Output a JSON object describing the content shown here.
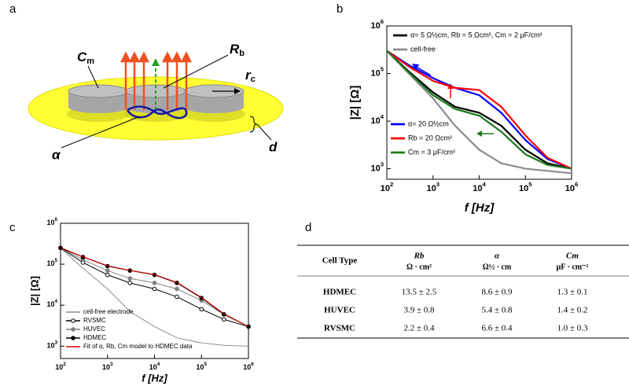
{
  "panel_labels": [
    "a",
    "b",
    "c",
    "d"
  ],
  "diagram": {
    "labels": [
      {
        "text": "C",
        "sub": "m"
      },
      {
        "text": "R",
        "sub": "b"
      },
      {
        "text": "r",
        "sub": "c"
      },
      {
        "text": "α"
      },
      {
        "text": "d"
      }
    ]
  },
  "chart_data": [
    {
      "type": "line",
      "log_x": true,
      "log_y": true,
      "xlabel": "f [Hz]",
      "ylabel": "|Z| [Ω]",
      "xlim": [
        100,
        1000000
      ],
      "ylim": [
        600,
        1000000
      ],
      "xticks": [
        {
          "value": 100,
          "label": "10^2"
        },
        {
          "value": 1000,
          "label": "10^3"
        },
        {
          "value": 10000,
          "label": "10^4"
        },
        {
          "value": 100000,
          "label": "10^5"
        },
        {
          "value": 1000000,
          "label": "10^6"
        }
      ],
      "yticks": [
        {
          "value": 1000,
          "label": "10^3"
        },
        {
          "value": 10000,
          "label": "10^4"
        },
        {
          "value": 100000,
          "label": "10^5"
        },
        {
          "value": 1000000,
          "label": "10^6"
        }
      ],
      "x": [
        100,
        300,
        1000,
        3000,
        10000,
        30000,
        100000,
        300000,
        1000000
      ],
      "series": [
        {
          "name": "α= 5 Ω½cm, Rb = 5 Ωcm², Cm = 2 μF/cm²",
          "color": "#000000",
          "values": [
            300000,
            110000,
            40000,
            20000,
            15000,
            8000,
            2500,
            1300,
            1000
          ]
        },
        {
          "name": "cell-free",
          "color": "#8c8c8c",
          "values": [
            300000,
            100000,
            30000,
            8000,
            2500,
            1300,
            1000,
            900,
            800
          ]
        },
        {
          "name": "α= 20 Ω½cm",
          "color": "#0000ff",
          "values": [
            300000,
            150000,
            80000,
            50000,
            35000,
            15000,
            4000,
            1600,
            1000
          ]
        },
        {
          "name": "Rb = 20 Ωcm²",
          "color": "#ff0000",
          "values": [
            300000,
            140000,
            70000,
            50000,
            45000,
            20000,
            5000,
            1700,
            1000
          ]
        },
        {
          "name": "Cm = 3 μF/cm²",
          "color": "#1a7a1a",
          "values": [
            300000,
            105000,
            35000,
            18000,
            13000,
            6000,
            2000,
            1200,
            1000
          ]
        }
      ]
    },
    {
      "type": "line",
      "log_x": true,
      "log_y": true,
      "xlabel": "f [Hz]",
      "ylabel": "|Z| [Ω]",
      "xlim": [
        100,
        1000000
      ],
      "ylim": [
        500,
        1000000
      ],
      "xticks": [
        {
          "value": 100,
          "label": "10^2"
        },
        {
          "value": 1000,
          "label": "10^3"
        },
        {
          "value": 10000,
          "label": "10^4"
        },
        {
          "value": 100000,
          "label": "10^5"
        },
        {
          "value": 1000000,
          "label": "10^6"
        }
      ],
      "yticks": [
        {
          "value": 1000,
          "label": "10^3"
        },
        {
          "value": 10000,
          "label": "10^4"
        },
        {
          "value": 100000,
          "label": "10^5"
        },
        {
          "value": 1000000,
          "label": "10^6"
        }
      ],
      "x": [
        100,
        300,
        1000,
        3000,
        10000,
        30000,
        100000,
        300000,
        1000000
      ],
      "series": [
        {
          "name": "cell-free electrode",
          "color": "#8c8c8c",
          "values": [
            250000,
            80000,
            25000,
            7000,
            3000,
            1600,
            1200,
            1050,
            1000
          ]
        },
        {
          "name": "RVSMC",
          "color": "#000000",
          "marker": "circle",
          "marker_fill": "#ffffff",
          "values": [
            250000,
            110000,
            55000,
            35000,
            25000,
            16000,
            8000,
            4500,
            3000
          ]
        },
        {
          "name": "HUVEC",
          "color": "#808080",
          "marker": "circle",
          "marker_fill": "#808080",
          "values": [
            250000,
            130000,
            70000,
            45000,
            35000,
            25000,
            13000,
            6000,
            3000
          ]
        },
        {
          "name": "HDMEC",
          "color": "#000000",
          "marker": "circle",
          "marker_fill": "#000000",
          "values": [
            250000,
            150000,
            90000,
            70000,
            55000,
            35000,
            15000,
            6000,
            3000
          ]
        },
        {
          "name": "Fit of α, Rb, Cm model to HDMEC data",
          "color": "#e00000",
          "values": [
            255000,
            152000,
            92000,
            71000,
            56000,
            36000,
            15500,
            6200,
            3000
          ]
        }
      ]
    }
  ],
  "table": {
    "columns": [
      {
        "name": "Cell Type"
      },
      {
        "name": "Rb",
        "unit": "Ω · cm²"
      },
      {
        "name": "α",
        "unit": "Ω½ · cm"
      },
      {
        "name": "Cm",
        "unit": "μF · cm⁻²"
      }
    ],
    "rows": [
      [
        "HDMEC",
        "13.5 ± 2.5",
        "8.6 ± 0.9",
        "1.3 ± 0.1"
      ],
      [
        "HUVEC",
        "3.9 ± 0.8",
        "5.4 ± 0.8",
        "1.4 ± 0.2"
      ],
      [
        "RVSMC",
        "2.2 ± 0.4",
        "6.6 ± 0.4",
        "1.0 ± 0.3"
      ]
    ]
  }
}
